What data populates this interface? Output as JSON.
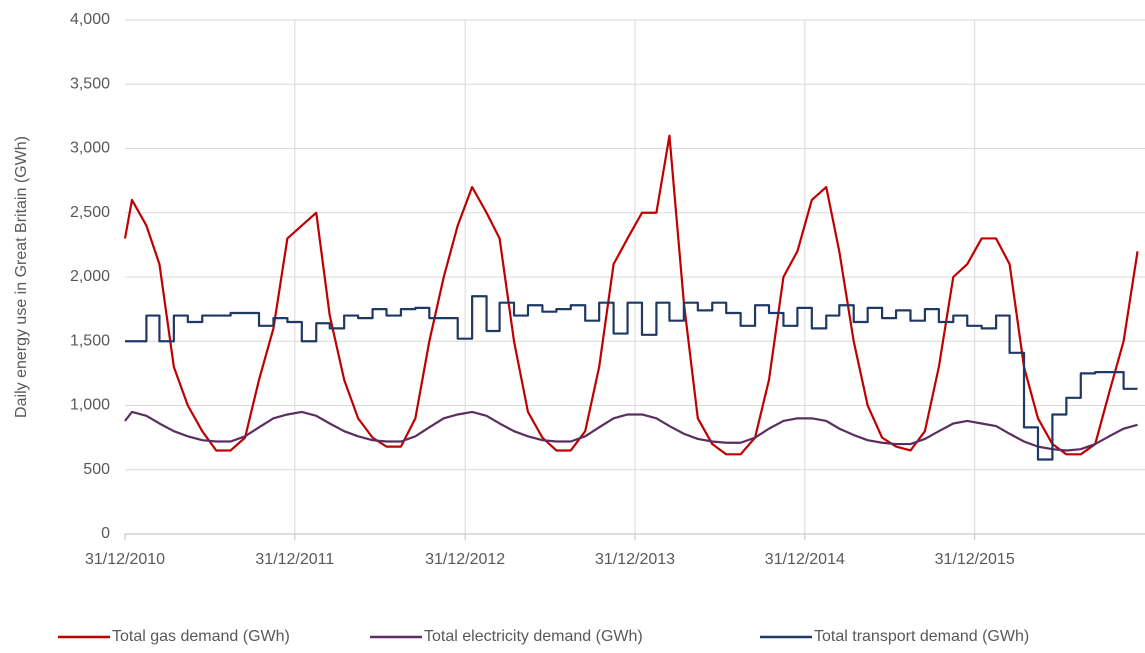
{
  "chart_data": {
    "type": "line",
    "y_label": "Daily energy use in Great Britain (GWh)",
    "x": [
      "31/12/2010",
      "15/01/2011",
      "15/02/2011",
      "15/03/2011",
      "15/04/2011",
      "15/05/2011",
      "15/06/2011",
      "15/07/2011",
      "15/08/2011",
      "15/09/2011",
      "15/10/2011",
      "15/11/2011",
      "15/12/2011",
      "15/01/2012",
      "15/02/2012",
      "15/03/2012",
      "15/04/2012",
      "15/05/2012",
      "15/06/2012",
      "15/07/2012",
      "15/08/2012",
      "15/09/2012",
      "15/10/2012",
      "15/11/2012",
      "15/12/2012",
      "15/01/2013",
      "15/02/2013",
      "15/03/2013",
      "15/04/2013",
      "15/05/2013",
      "15/06/2013",
      "15/07/2013",
      "15/08/2013",
      "15/09/2013",
      "15/10/2013",
      "15/11/2013",
      "15/12/2013",
      "15/01/2014",
      "15/02/2014",
      "15/03/2014",
      "15/04/2014",
      "15/05/2014",
      "15/06/2014",
      "15/07/2014",
      "15/08/2014",
      "15/09/2014",
      "15/10/2014",
      "15/11/2014",
      "15/12/2014",
      "15/01/2015",
      "15/02/2015",
      "15/03/2015",
      "15/04/2015",
      "15/05/2015",
      "15/06/2015",
      "15/07/2015",
      "15/08/2015",
      "15/09/2015",
      "15/10/2015",
      "15/11/2015",
      "15/12/2015",
      "15/01/2016",
      "15/02/2016",
      "15/03/2016",
      "15/04/2016",
      "15/05/2016",
      "15/06/2016",
      "15/07/2016",
      "15/08/2016",
      "15/09/2016",
      "15/10/2016",
      "15/11/2016",
      "15/12/2016"
    ],
    "series": [
      {
        "name": "Total gas demand  (GWh)",
        "color": "#c00000",
        "values": [
          2300,
          2600,
          2400,
          2100,
          1300,
          1000,
          800,
          650,
          650,
          750,
          1200,
          1600,
          2300,
          2400,
          2500,
          1700,
          1200,
          900,
          750,
          680,
          680,
          900,
          1500,
          2000,
          2400,
          2700,
          2500,
          2300,
          1500,
          950,
          750,
          650,
          650,
          800,
          1300,
          2100,
          2300,
          2500,
          2500,
          3100,
          1800,
          900,
          700,
          620,
          620,
          750,
          1200,
          2000,
          2200,
          2600,
          2700,
          2200,
          1500,
          1000,
          750,
          680,
          650,
          800,
          1300,
          2000,
          2100,
          2300,
          2300,
          2100,
          1300,
          900,
          700,
          620,
          620,
          700,
          1100,
          1500,
          2200
        ]
      },
      {
        "name": "Total electricity demand (GWh)",
        "color": "#5c2d62",
        "values": [
          880,
          950,
          920,
          860,
          800,
          760,
          730,
          720,
          720,
          760,
          830,
          900,
          930,
          950,
          920,
          860,
          800,
          760,
          730,
          720,
          720,
          760,
          830,
          900,
          930,
          950,
          920,
          860,
          800,
          760,
          730,
          720,
          720,
          760,
          830,
          900,
          930,
          930,
          900,
          840,
          780,
          740,
          720,
          710,
          710,
          750,
          820,
          880,
          900,
          900,
          880,
          820,
          770,
          730,
          710,
          700,
          700,
          740,
          800,
          860,
          880,
          860,
          840,
          780,
          720,
          680,
          660,
          650,
          660,
          700,
          760,
          820,
          850
        ]
      },
      {
        "name": "Total transport demand (GWh)",
        "color": "#1f3864",
        "step": true,
        "values": [
          1500,
          1500,
          1700,
          1500,
          1700,
          1650,
          1700,
          1700,
          1720,
          1720,
          1620,
          1680,
          1650,
          1500,
          1640,
          1600,
          1700,
          1680,
          1750,
          1700,
          1750,
          1760,
          1680,
          1680,
          1520,
          1850,
          1580,
          1800,
          1700,
          1780,
          1730,
          1750,
          1780,
          1660,
          1800,
          1560,
          1800,
          1550,
          1800,
          1660,
          1800,
          1740,
          1800,
          1720,
          1620,
          1780,
          1720,
          1620,
          1760,
          1600,
          1700,
          1780,
          1650,
          1760,
          1680,
          1740,
          1660,
          1750,
          1650,
          1700,
          1620,
          1600,
          1700,
          1410,
          830,
          580,
          930,
          1060,
          1250,
          1260,
          1260,
          1130,
          1130
        ]
      }
    ],
    "xlim": [
      "31/12/2010",
      "31/12/2016"
    ],
    "xticks": [
      "31/12/2010",
      "31/12/2011",
      "31/12/2012",
      "31/12/2013",
      "31/12/2014",
      "31/12/2015"
    ],
    "ylim": [
      0,
      4000
    ],
    "yticks": [
      0,
      500,
      {
        "value": 1000,
        "label": "1,000"
      },
      {
        "value": 1500,
        "label": "1,500"
      },
      {
        "value": 2000,
        "label": "2,000"
      },
      {
        "value": 2500,
        "label": "2,500"
      },
      {
        "value": 3000,
        "label": "3,000"
      },
      {
        "value": 3500,
        "label": "3,500"
      },
      {
        "value": 4000,
        "label": "4,000"
      }
    ],
    "grid": true,
    "legend": "bottom"
  }
}
